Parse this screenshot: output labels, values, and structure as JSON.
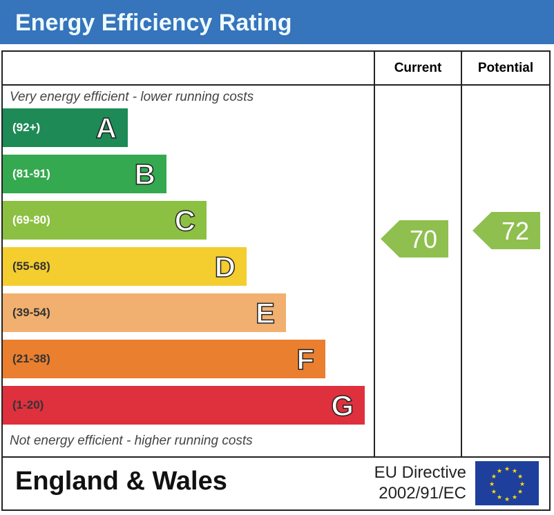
{
  "title": "Energy Efficiency Rating",
  "colors": {
    "title_bg": "#3674bb",
    "arrow": "#8fbf4f"
  },
  "chart_data": {
    "type": "table",
    "columns": [
      "Current",
      "Potential"
    ],
    "top_note": "Very energy efficient - lower running costs",
    "bottom_note": "Not energy efficient - higher running costs",
    "bands": [
      {
        "letter": "A",
        "range": "(92+)",
        "color": "#1e8a55"
      },
      {
        "letter": "B",
        "range": "(81-91)",
        "color": "#35a94f"
      },
      {
        "letter": "C",
        "range": "(69-80)",
        "color": "#8cc043"
      },
      {
        "letter": "D",
        "range": "(55-68)",
        "color": "#f4cd2e"
      },
      {
        "letter": "E",
        "range": "(39-54)",
        "color": "#f1b06f"
      },
      {
        "letter": "F",
        "range": "(21-38)",
        "color": "#ea7f2f"
      },
      {
        "letter": "G",
        "range": "(1-20)",
        "color": "#df303d"
      }
    ],
    "current": 70,
    "potential": 72
  },
  "footer": {
    "region": "England & Wales",
    "directive_line1": "EU Directive",
    "directive_line2": "2002/91/EC"
  }
}
